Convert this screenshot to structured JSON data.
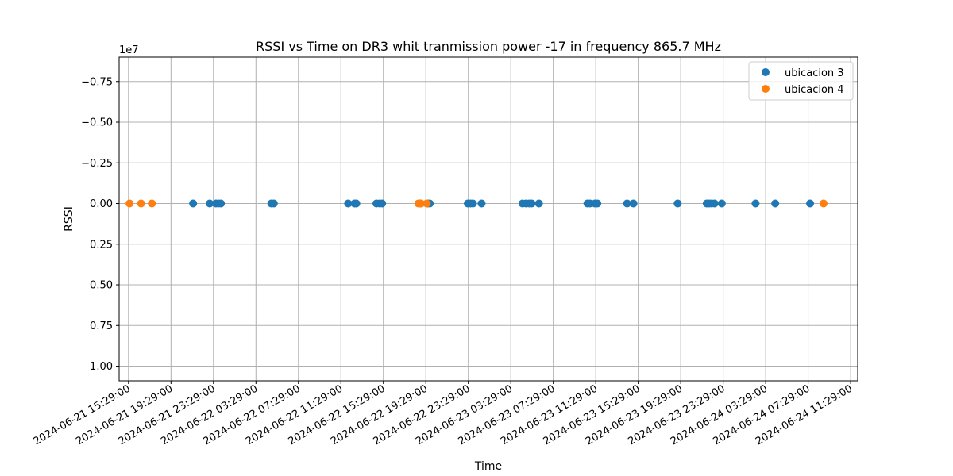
{
  "chart_data": {
    "type": "scatter",
    "title": "RSSI vs Time on DR3  whit tranmission power -17 in frequency 865.7 MHz",
    "xlabel": "Time",
    "ylabel": "RSSI",
    "y_offset_label": "1e7",
    "y_inverted": true,
    "ylim": [
      -0.9,
      1.09
    ],
    "xlim": [
      "2024-06-21 14:36:00",
      "2024-06-24 12:09:00"
    ],
    "grid": true,
    "legend_position": "top-right",
    "y_ticks": [
      {
        "value": -0.75,
        "label": "−0.75"
      },
      {
        "value": -0.5,
        "label": "−0.50"
      },
      {
        "value": -0.25,
        "label": "−0.25"
      },
      {
        "value": 0,
        "label": "0.00"
      },
      {
        "value": 0.25,
        "label": "0.25"
      },
      {
        "value": 0.5,
        "label": "0.50"
      },
      {
        "value": 0.75,
        "label": "0.75"
      },
      {
        "value": 1.0,
        "label": "1.00"
      }
    ],
    "x_ticks": [
      "2024-06-21 15:29:00",
      "2024-06-21 19:29:00",
      "2024-06-21 23:29:00",
      "2024-06-22 03:29:00",
      "2024-06-22 07:29:00",
      "2024-06-22 11:29:00",
      "2024-06-22 15:29:00",
      "2024-06-22 19:29:00",
      "2024-06-22 23:29:00",
      "2024-06-23 03:29:00",
      "2024-06-23 07:29:00",
      "2024-06-23 11:29:00",
      "2024-06-23 15:29:00",
      "2024-06-23 19:29:00",
      "2024-06-23 23:29:00",
      "2024-06-24 03:29:00",
      "2024-06-24 07:29:00",
      "2024-06-24 11:29:00"
    ],
    "series": [
      {
        "name": "ubicacion 3",
        "color": "#1f77b4",
        "points": [
          {
            "x": "2024-06-21 21:34:00",
            "y": 0
          },
          {
            "x": "2024-06-21 23:08:00",
            "y": 0
          },
          {
            "x": "2024-06-21 23:43:00",
            "y": 0
          },
          {
            "x": "2024-06-21 23:57:00",
            "y": 0
          },
          {
            "x": "2024-06-22 00:11:00",
            "y": 0
          },
          {
            "x": "2024-06-22 04:56:00",
            "y": 0
          },
          {
            "x": "2024-06-22 05:10:00",
            "y": 0
          },
          {
            "x": "2024-06-22 12:10:00",
            "y": 0
          },
          {
            "x": "2024-06-22 12:46:00",
            "y": 0
          },
          {
            "x": "2024-06-22 12:56:00",
            "y": 0
          },
          {
            "x": "2024-06-22 14:50:00",
            "y": 0
          },
          {
            "x": "2024-06-22 15:08:00",
            "y": 0
          },
          {
            "x": "2024-06-22 15:22:00",
            "y": 0
          },
          {
            "x": "2024-06-22 18:59:00",
            "y": 0
          },
          {
            "x": "2024-06-22 19:40:00",
            "y": 0
          },
          {
            "x": "2024-06-22 19:51:00",
            "y": 0
          },
          {
            "x": "2024-06-22 23:26:00",
            "y": 0
          },
          {
            "x": "2024-06-22 23:41:00",
            "y": 0
          },
          {
            "x": "2024-06-22 23:55:00",
            "y": 0
          },
          {
            "x": "2024-06-23 00:44:00",
            "y": 0
          },
          {
            "x": "2024-06-23 04:35:00",
            "y": 0
          },
          {
            "x": "2024-06-23 04:55:00",
            "y": 0
          },
          {
            "x": "2024-06-23 05:13:00",
            "y": 0
          },
          {
            "x": "2024-06-23 05:27:00",
            "y": 0
          },
          {
            "x": "2024-06-23 06:08:00",
            "y": 0
          },
          {
            "x": "2024-06-23 10:42:00",
            "y": 0
          },
          {
            "x": "2024-06-23 10:56:00",
            "y": 0
          },
          {
            "x": "2024-06-23 11:24:00",
            "y": 0
          },
          {
            "x": "2024-06-23 11:38:00",
            "y": 0
          },
          {
            "x": "2024-06-23 14:26:00",
            "y": 0
          },
          {
            "x": "2024-06-23 15:02:00",
            "y": 0
          },
          {
            "x": "2024-06-23 19:12:00",
            "y": 0
          },
          {
            "x": "2024-06-23 21:56:00",
            "y": 0
          },
          {
            "x": "2024-06-23 22:10:00",
            "y": 0
          },
          {
            "x": "2024-06-23 22:24:00",
            "y": 0
          },
          {
            "x": "2024-06-23 22:40:00",
            "y": 0
          },
          {
            "x": "2024-06-23 23:21:00",
            "y": 0
          },
          {
            "x": "2024-06-24 02:32:00",
            "y": 0
          },
          {
            "x": "2024-06-24 04:23:00",
            "y": 0
          },
          {
            "x": "2024-06-24 07:40:00",
            "y": 0
          }
        ]
      },
      {
        "name": "ubicacion 4",
        "color": "#ff7f0e",
        "points": [
          {
            "x": "2024-06-21 15:35:00",
            "y": 0
          },
          {
            "x": "2024-06-21 16:40:00",
            "y": 0
          },
          {
            "x": "2024-06-21 17:41:00",
            "y": 0
          },
          {
            "x": "2024-06-22 18:47:00",
            "y": 0
          },
          {
            "x": "2024-06-22 19:02:00",
            "y": 0
          },
          {
            "x": "2024-06-22 19:34:00",
            "y": 0
          },
          {
            "x": "2024-06-24 08:56:00",
            "y": 0
          }
        ]
      }
    ]
  }
}
